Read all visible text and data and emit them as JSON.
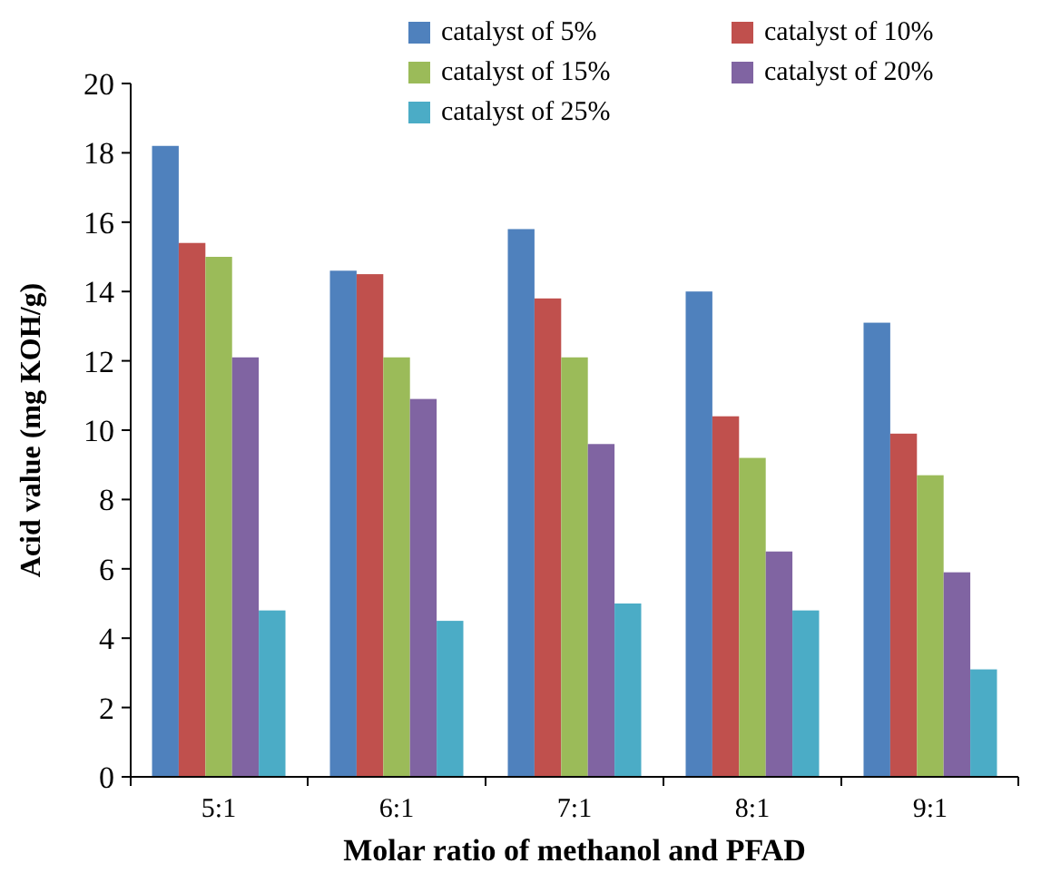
{
  "chart_data": {
    "type": "bar",
    "xlabel": "Molar ratio of methanol and PFAD",
    "ylabel": "Acid value  (mg KOH/g)",
    "categories": [
      "5:1",
      "6:1",
      "7:1",
      "8:1",
      "9:1"
    ],
    "series": [
      {
        "name": "catalyst of 5%",
        "color": "#4f81bd",
        "values": [
          18.2,
          14.6,
          15.8,
          14.0,
          13.1
        ]
      },
      {
        "name": "catalyst of 10%",
        "color": "#c0504d",
        "values": [
          15.4,
          14.5,
          13.8,
          10.4,
          9.9
        ]
      },
      {
        "name": "catalyst of 15%",
        "color": "#9bbb59",
        "values": [
          15.0,
          12.1,
          12.1,
          9.2,
          8.7
        ]
      },
      {
        "name": "catalyst of 20%",
        "color": "#8064a2",
        "values": [
          12.1,
          10.9,
          9.6,
          6.5,
          5.9
        ]
      },
      {
        "name": "catalyst of 25%",
        "color": "#4bacc6",
        "values": [
          4.8,
          4.5,
          5.0,
          4.8,
          3.1
        ]
      }
    ],
    "ylim": [
      0,
      20
    ],
    "yticks": [
      0,
      2,
      4,
      6,
      8,
      10,
      12,
      14,
      16,
      18,
      20
    ],
    "grid": false,
    "legend": "top right"
  }
}
